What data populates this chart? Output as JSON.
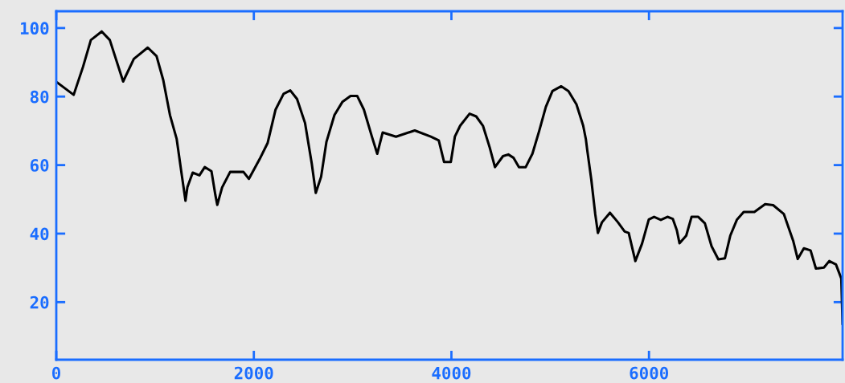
{
  "chart_data": {
    "type": "line",
    "x": [
      14,
      176,
      271,
      350,
      460,
      542,
      677,
      785,
      926,
      1015,
      1083,
      1151,
      1219,
      1273,
      1308,
      1327,
      1381,
      1449,
      1503,
      1571,
      1611,
      1630,
      1679,
      1760,
      1895,
      1950,
      2058,
      2139,
      2220,
      2301,
      2369,
      2437,
      2518,
      2586,
      2627,
      2681,
      2735,
      2816,
      2898,
      2979,
      3046,
      3114,
      3195,
      3249,
      3304,
      3439,
      3629,
      3791,
      3872,
      3926,
      3994,
      4035,
      4089,
      4184,
      4251,
      4319,
      4387,
      4441,
      4522,
      4576,
      4630,
      4684,
      4752,
      4820,
      4888,
      4956,
      5023,
      5112,
      5185,
      5266,
      5334,
      5361,
      5375,
      5416,
      5456,
      5483,
      5524,
      5605,
      5686,
      5754,
      5795,
      5862,
      5930,
      5998,
      6052,
      6120,
      6187,
      6241,
      6282,
      6309,
      6377,
      6431,
      6499,
      6566,
      6634,
      6702,
      6769,
      6823,
      6891,
      6959,
      7067,
      7176,
      7257,
      7366,
      7460,
      7506,
      7568,
      7636,
      7690,
      7771,
      7825,
      7893,
      7947,
      7960
    ],
    "series": [
      {
        "color": "#000000",
        "values": [
          84.0,
          80.5,
          88.7,
          96.5,
          99.0,
          96.5,
          84.4,
          91.0,
          94.3,
          91.8,
          84.8,
          74.6,
          67.6,
          56.6,
          49.6,
          53.5,
          57.8,
          57.0,
          59.4,
          58.2,
          51.2,
          48.4,
          53.5,
          58.0,
          58.0,
          56.0,
          61.7,
          66.4,
          76.2,
          80.8,
          81.8,
          79.3,
          72.3,
          60.5,
          51.9,
          56.6,
          66.8,
          74.6,
          78.5,
          80.2,
          80.2,
          76.2,
          68.3,
          63.3,
          69.5,
          68.3,
          70.1,
          68.3,
          67.2,
          60.9,
          60.9,
          68.3,
          71.5,
          75.0,
          74.2,
          71.5,
          65.2,
          59.4,
          62.6,
          63.1,
          62.1,
          59.4,
          59.4,
          63.3,
          69.9,
          77.0,
          81.6,
          83.0,
          81.6,
          77.7,
          71.5,
          67.6,
          64.4,
          55.8,
          45.7,
          40.2,
          43.3,
          46.1,
          43.3,
          40.6,
          40.2,
          32.0,
          37.1,
          44.1,
          44.9,
          44.0,
          44.9,
          44.3,
          41.0,
          37.2,
          39.4,
          44.9,
          44.9,
          43.0,
          36.3,
          32.5,
          32.8,
          39.4,
          44.1,
          46.3,
          46.3,
          48.6,
          48.3,
          45.7,
          37.9,
          32.6,
          35.7,
          35.1,
          29.8,
          30.1,
          32.0,
          31.0,
          26.9,
          13.7
        ]
      }
    ],
    "xlim": [
      0,
      7960
    ],
    "ylim": [
      3.2,
      104.9
    ],
    "xticks": [
      0,
      2000,
      4000,
      6000
    ],
    "yticks": [
      20,
      40,
      60,
      80,
      100
    ],
    "grid": false,
    "legend": false,
    "marker": "none",
    "line_style": "solid"
  }
}
